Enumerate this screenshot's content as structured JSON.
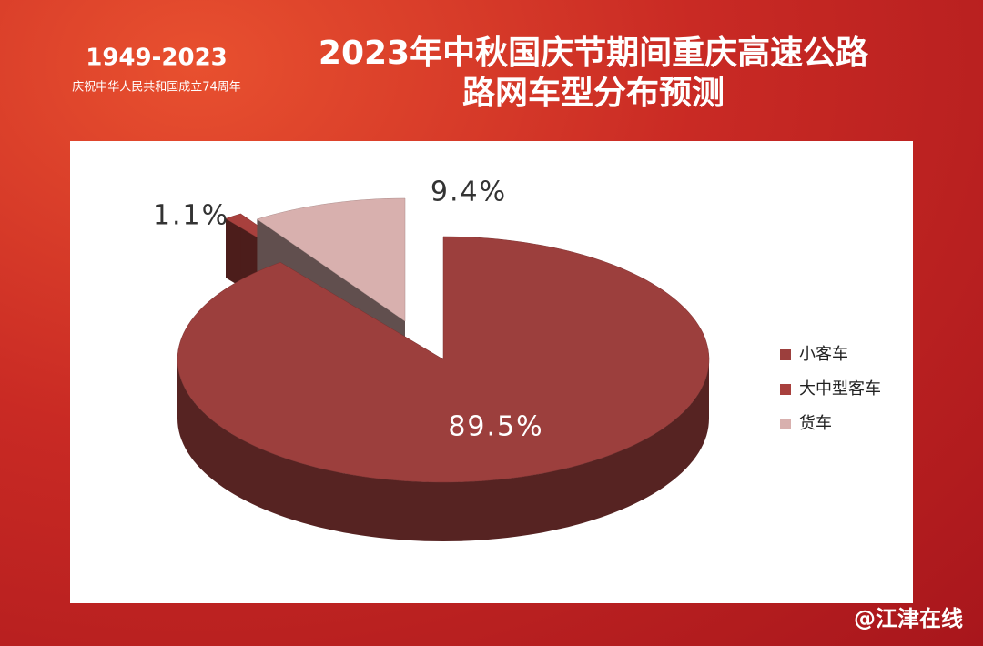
{
  "header": {
    "years": "1949-2023",
    "subtitle": "庆祝中华人民共和国成立74周年"
  },
  "chart_data": {
    "type": "pie",
    "title": [
      "2023年中秋国庆节期间重庆高速公路",
      "路网车型分布预测"
    ],
    "categories": [
      "小客车",
      "大中型客车",
      "货车"
    ],
    "values": [
      89.5,
      1.1,
      9.4
    ],
    "value_labels": [
      "89.5%",
      "1.1%",
      "9.4%"
    ],
    "colors": [
      "#9c3f3d",
      "#a8403d",
      "#d8b0ae"
    ],
    "legend": "right"
  },
  "watermark": "@江津在线"
}
